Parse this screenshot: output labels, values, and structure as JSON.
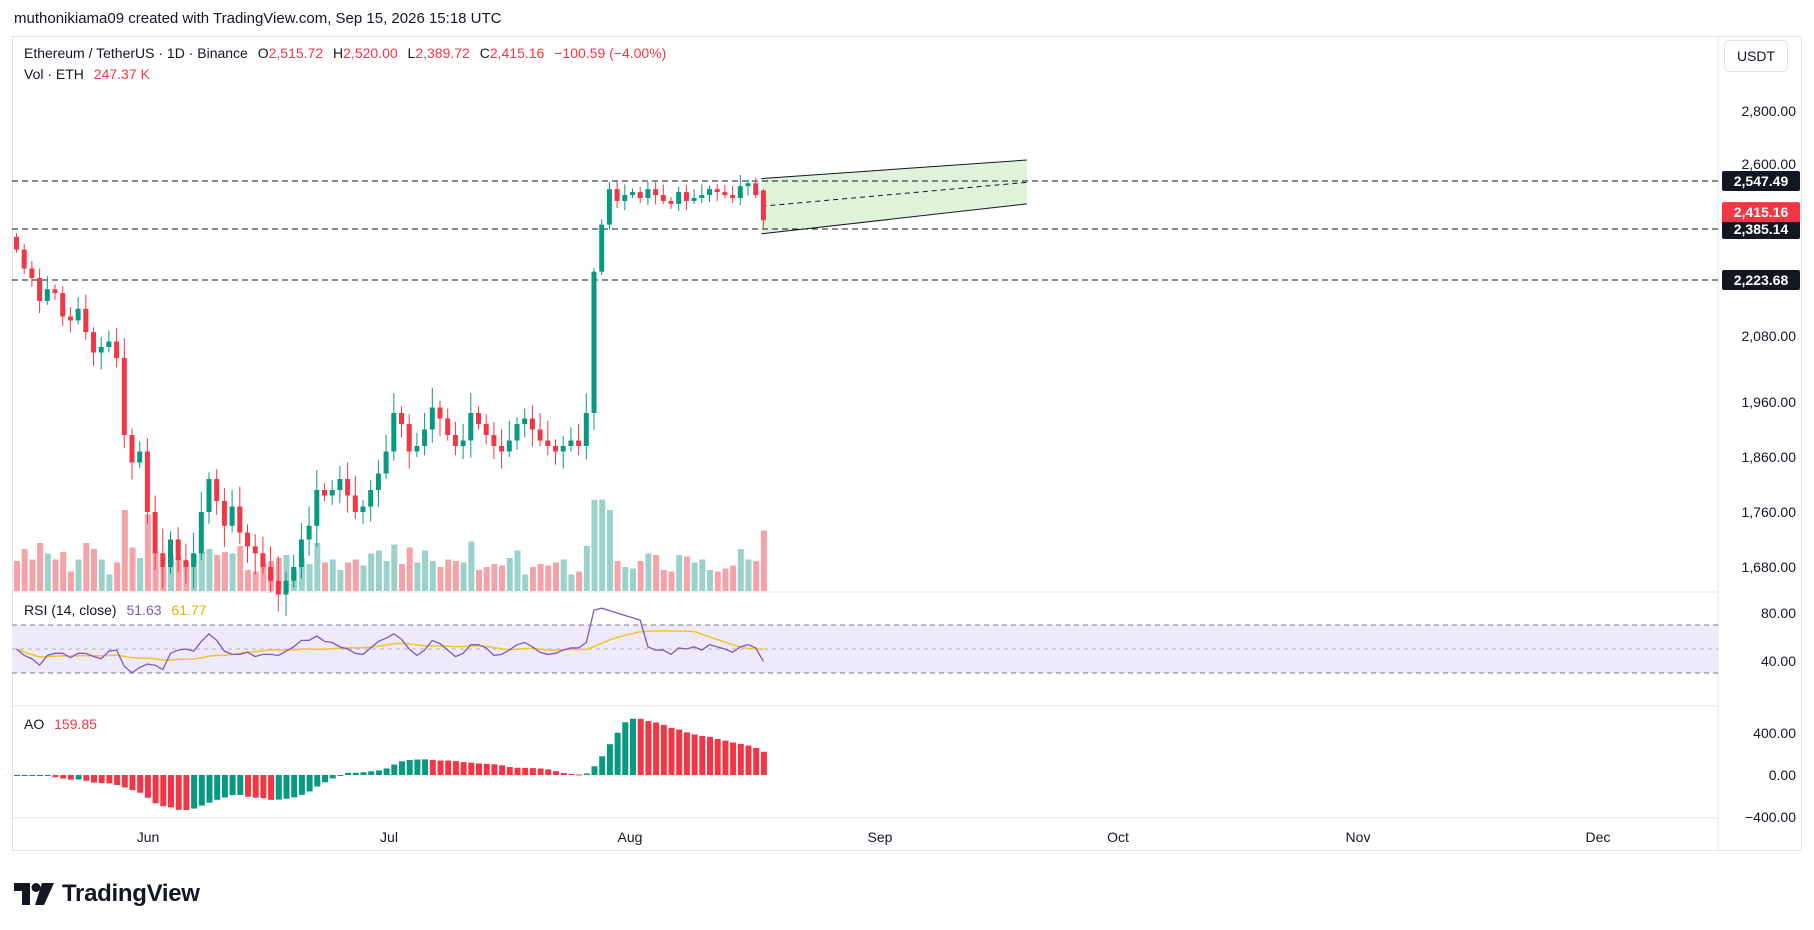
{
  "header": {
    "credit": "muthonikiama09 created with TradingView.com, Sep 15, 2026 15:18 UTC"
  },
  "legend": {
    "symbol": "Ethereum / TetherUS · 1D · Binance",
    "o_label": "O",
    "o_value": "2,515.72",
    "h_label": "H",
    "h_value": "2,520.00",
    "l_label": "L",
    "l_value": "2,389.72",
    "c_label": "C",
    "c_value": "2,415.16",
    "change": "−100.59 (−4.00%)",
    "vol_label": "Vol · ETH",
    "vol_value": "247.37 K",
    "rsi_label": "RSI (14, close)",
    "rsi_value": "51.63",
    "rsi_ma_value": "61.77",
    "ao_label": "AO",
    "ao_value": "159.85"
  },
  "currency_button": "USDT",
  "brand": {
    "name": "TradingView"
  },
  "colors": {
    "up": "#089981",
    "down": "#f23645",
    "vol_up": "#9ad2c9",
    "vol_down": "#f5a3a9",
    "channel_fill": "#d9f0d3",
    "rsi_line": "#7e57c2",
    "rsi_ma": "#f7c325",
    "rsi_band": "#eeeafa"
  },
  "chart_data": {
    "type": "candlestick",
    "interval": "1D",
    "price_axis": {
      "ticks": [
        "2,800.00",
        "2,600.00",
        "2,080.00",
        "1,960.00",
        "1,860.00",
        "1,760.00",
        "1,680.00"
      ],
      "tick_values": [
        2800,
        2600,
        2080,
        1960,
        1860,
        1760,
        1680
      ]
    },
    "time_axis": {
      "ticks": [
        "Jun",
        "Jul",
        "Aug",
        "Sep",
        "Oct",
        "Nov",
        "Dec"
      ]
    },
    "horizontal_levels": [
      {
        "value": 2547.49,
        "label": "2,547.49"
      },
      {
        "value": 2385.14,
        "label": "2,385.14"
      },
      {
        "value": 2223.68,
        "label": "2,223.68"
      }
    ],
    "last_price": {
      "value": 2415.16,
      "label": "2,415.16"
    },
    "channel": {
      "upper": [
        {
          "date": "Aug 18",
          "price": 2555
        },
        {
          "date": "Sep 20",
          "price": 2615
        }
      ],
      "lower": [
        {
          "date": "Aug 18",
          "price": 2370
        },
        {
          "date": "Sep 20",
          "price": 2470
        }
      ],
      "mid": [
        {
          "date": "Aug 18",
          "price": 2462
        },
        {
          "date": "Sep 20",
          "price": 2543
        }
      ]
    },
    "ohlc_tail": [
      2515.72,
      2520.0,
      2389.72,
      2415.16
    ],
    "closes": [
      2320,
      2260,
      2230,
      2170,
      2200,
      2190,
      2130,
      2120,
      2150,
      2090,
      2050,
      2060,
      2070,
      2040,
      1900,
      1850,
      1870,
      1760,
      1700,
      1680,
      1720,
      1690,
      1680,
      1700,
      1760,
      1820,
      1780,
      1740,
      1770,
      1730,
      1710,
      1700,
      1680,
      1660,
      1640,
      1660,
      1680,
      1720,
      1740,
      1800,
      1790,
      1800,
      1820,
      1790,
      1760,
      1770,
      1800,
      1830,
      1870,
      1940,
      1920,
      1870,
      1880,
      1910,
      1950,
      1930,
      1900,
      1880,
      1890,
      1940,
      1920,
      1900,
      1880,
      1870,
      1890,
      1920,
      1930,
      1910,
      1890,
      1880,
      1870,
      1880,
      1890,
      1880,
      1940,
      2250,
      2400,
      2520,
      2480,
      2500,
      2510,
      2490,
      2520,
      2500,
      2480,
      2470,
      2510,
      2480,
      2490,
      2500,
      2520,
      2510,
      2500,
      2490,
      2530,
      2540,
      2500,
      2415
    ],
    "rsi": {
      "axis_ticks": [
        "80.00",
        "40.00"
      ],
      "value": 51.63,
      "ma": 61.77,
      "upper_band": 70,
      "lower_band": 30
    },
    "ao": {
      "axis_ticks": [
        "400.00",
        "0.00",
        "−400.00"
      ],
      "value": 159.85
    }
  }
}
